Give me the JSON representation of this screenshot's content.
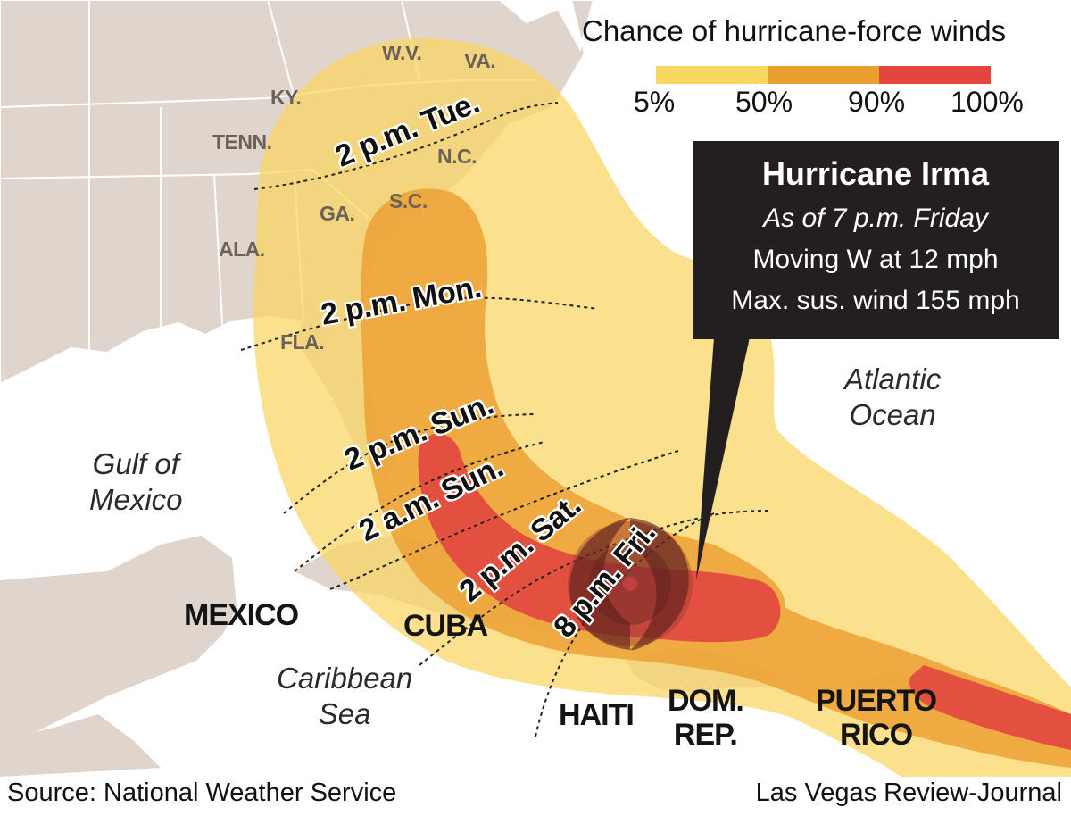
{
  "legend": {
    "title": "Chance of hurricane-force winds",
    "scale_labels": [
      "5%",
      "50%",
      "90%",
      "100%"
    ],
    "colors": [
      "#f9d561",
      "#ec9f31",
      "#e2463f"
    ]
  },
  "info_box": {
    "title": "Hurricane Irma",
    "as_of": "As of 7 p.m. Friday",
    "movement": "Moving W at 12 mph",
    "max_wind": "Max. sus. wind 155 mph"
  },
  "states": [
    "W.V.",
    "VA.",
    "KY.",
    "TENN.",
    "N.C.",
    "S.C.",
    "GA.",
    "ALA.",
    "FLA."
  ],
  "countries": {
    "mexico": "MEXICO",
    "cuba": "CUBA",
    "haiti": "HAITI",
    "dom_rep": "DOM.\nREP.",
    "puerto_rico": "PUERTO\nRICO"
  },
  "water_bodies": {
    "gulf": "Gulf of\nMexico",
    "caribbean": "Caribbean\nSea",
    "atlantic": "Atlantic\nOcean"
  },
  "forecast_times": [
    "2 p.m. Tue.",
    "2 p.m. Mon.",
    "2 p.m. Sun.",
    "2 a.m. Sun.",
    "2 p.m. Sat.",
    "8 p.m. Fri."
  ],
  "footer": {
    "source": "Source: National Weather Service",
    "credit": "Las Vegas Review-Journal"
  },
  "colors": {
    "land": "#e0d5cc",
    "ocean": "#ffffff",
    "info_box_bg": "#231f20",
    "cone_5": "#f9d561",
    "cone_50": "#ec9f31",
    "cone_90": "#e2463f"
  }
}
